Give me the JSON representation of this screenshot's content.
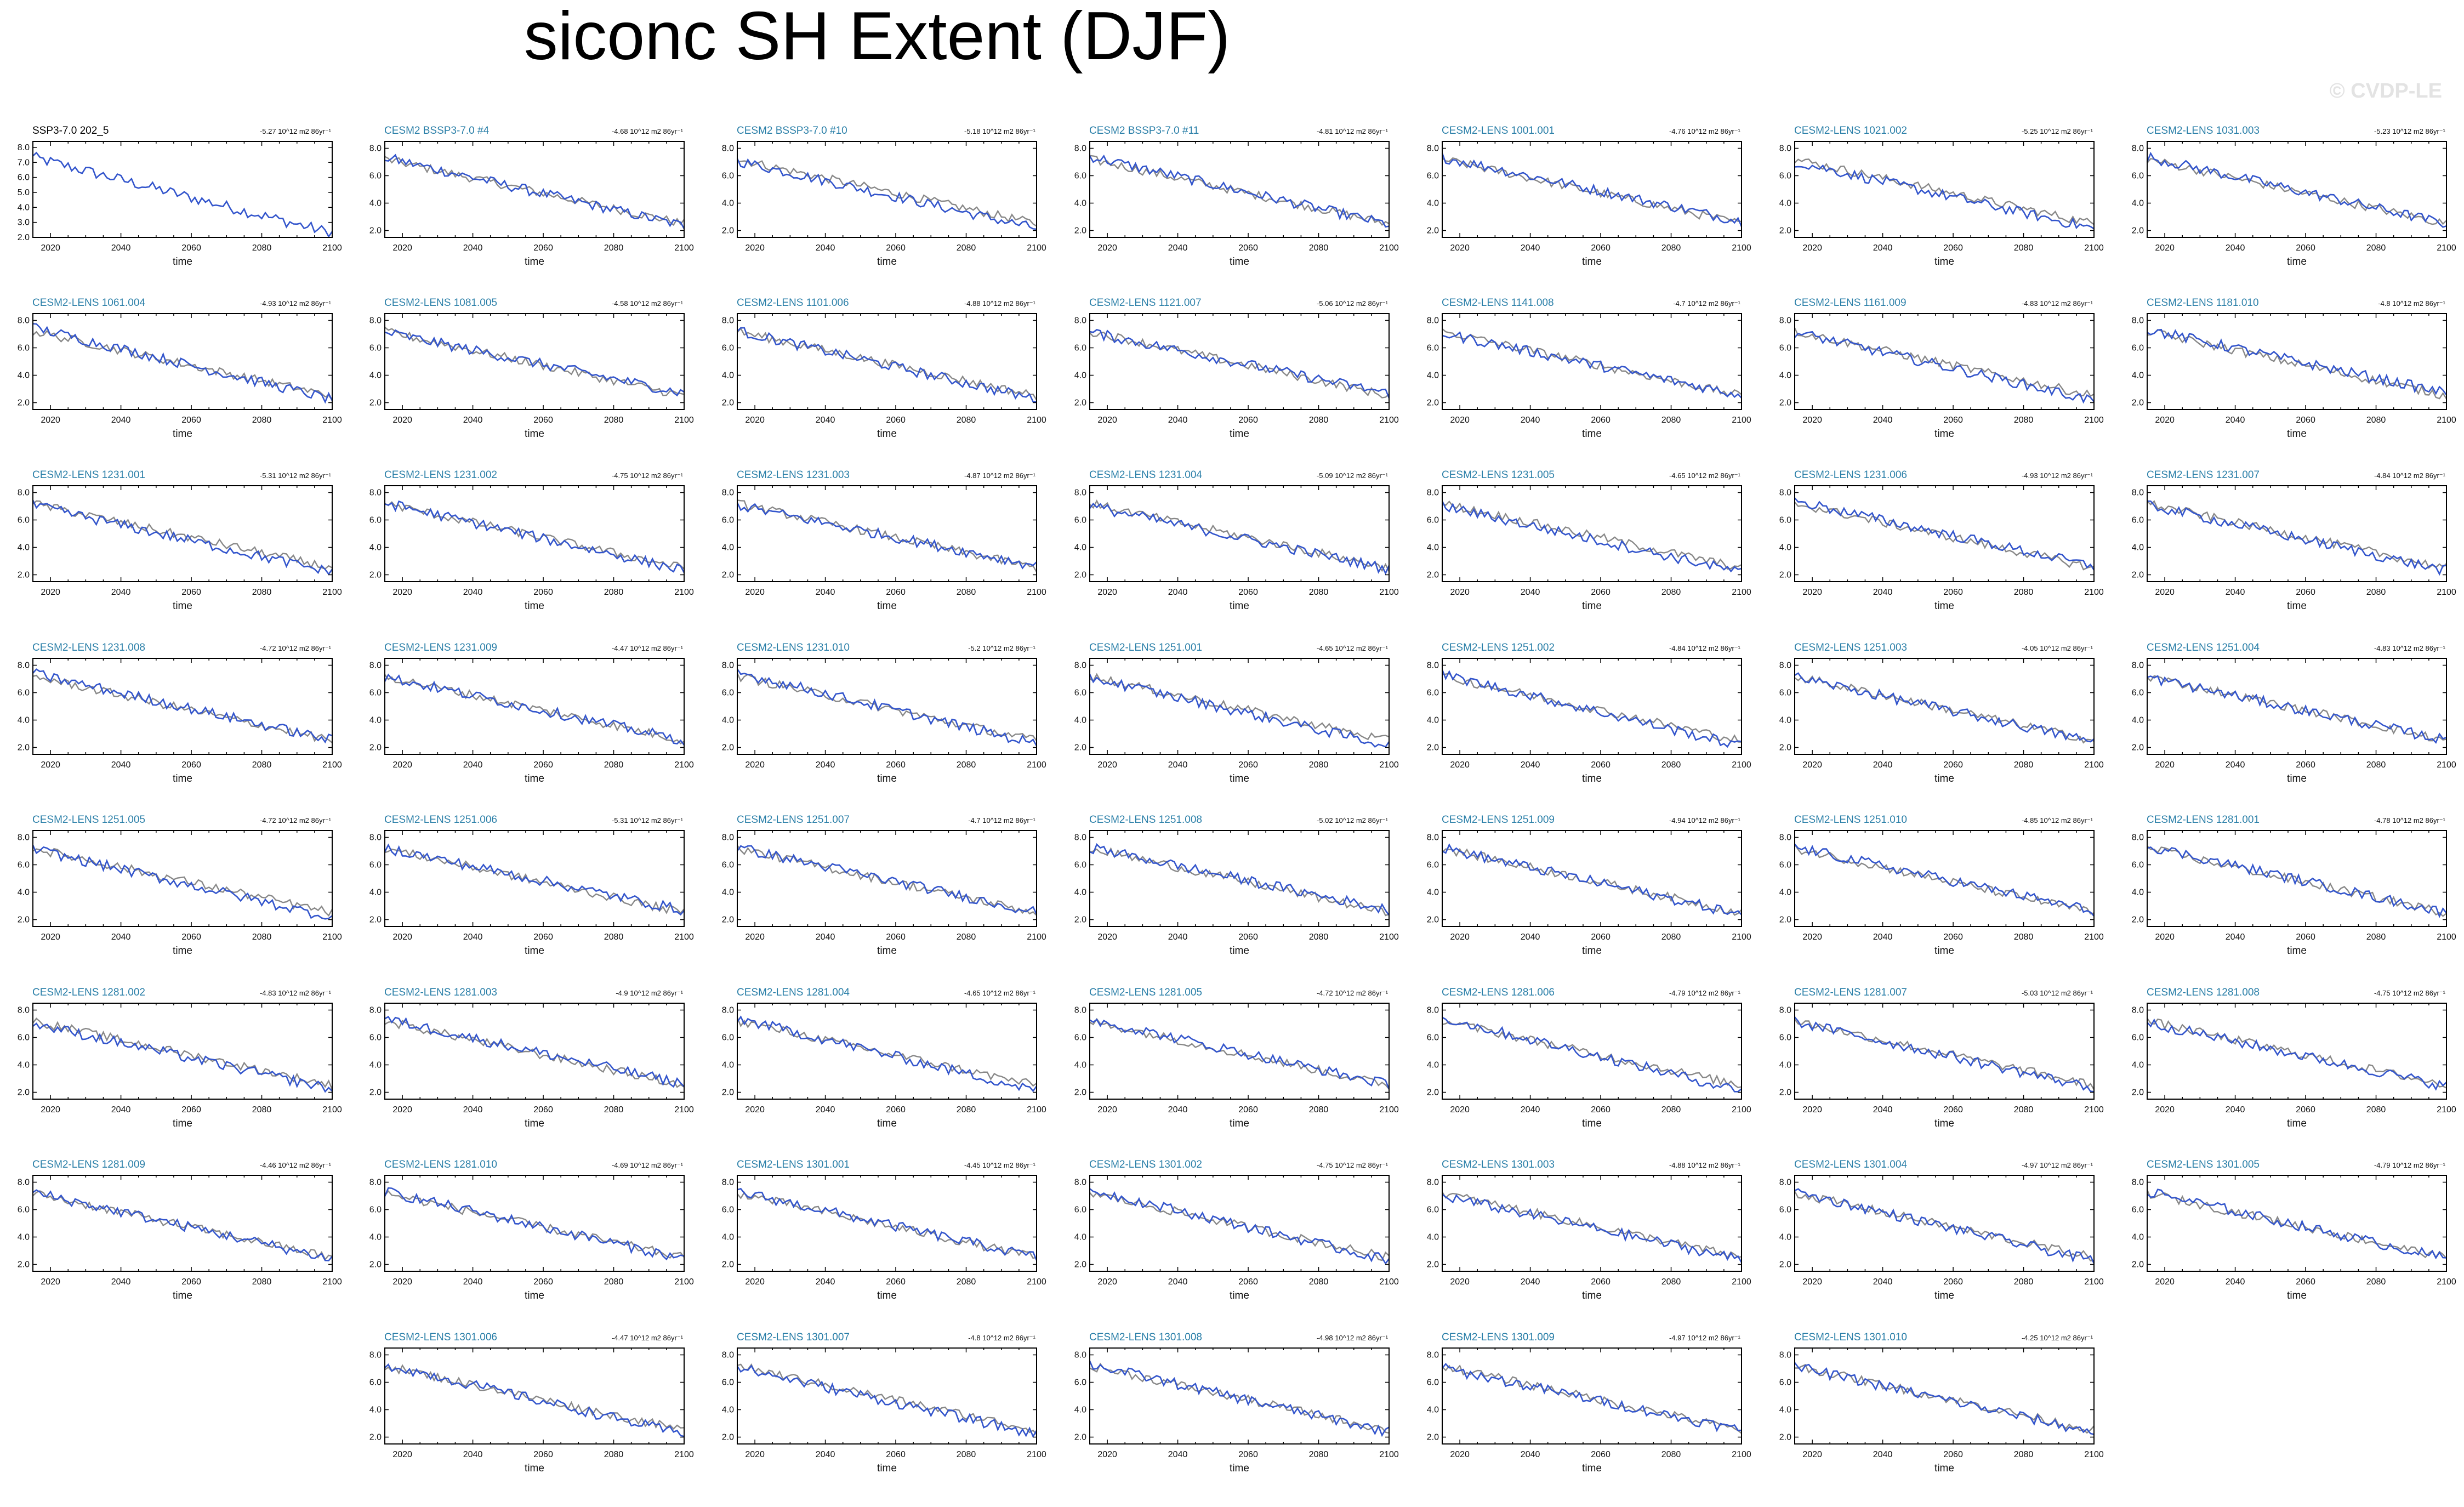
{
  "figure_title": "siconc SH Extent (DJF)",
  "watermark": "© CVDP-LE",
  "colors": {
    "ensemble_line": "#3355cc",
    "reference_line": "#888888",
    "panel_title_ensemble": "#2a7fa8",
    "panel_title_first": "#000000",
    "frame": "#000000"
  },
  "chart_data": {
    "type": "line",
    "xlabel": "time",
    "xlim": [
      2015,
      2100
    ],
    "ylim": [
      2.0,
      8.0
    ],
    "x_ticks": [
      2020,
      2040,
      2060,
      2080,
      2100
    ],
    "y_ticks": [
      "2.0",
      "4.0",
      "6.0",
      "8.0"
    ],
    "first_panel_y_ticks": [
      "2.0",
      "3.0",
      "4.0",
      "5.0",
      "6.0",
      "7.0",
      "8.0"
    ],
    "panels": [
      {
        "title": "SSP3-7.0 202_5",
        "trend": "-5.27 10^12 m2 86yr⁻¹"
      },
      {
        "title": "CESM2 BSSP3-7.0 #4",
        "trend": "-4.68 10^12 m2 86yr⁻¹"
      },
      {
        "title": "CESM2 BSSP3-7.0 #10",
        "trend": "-5.18 10^12 m2 86yr⁻¹"
      },
      {
        "title": "CESM2 BSSP3-7.0 #11",
        "trend": "-4.81 10^12 m2 86yr⁻¹"
      },
      {
        "title": "CESM2-LENS 1001.001",
        "trend": "-4.76 10^12 m2 86yr⁻¹"
      },
      {
        "title": "CESM2-LENS 1021.002",
        "trend": "-5.25 10^12 m2 86yr⁻¹"
      },
      {
        "title": "CESM2-LENS 1031.003",
        "trend": "-5.23 10^12 m2 86yr⁻¹"
      },
      {
        "title": "CESM2-LENS 1061.004",
        "trend": "-4.93 10^12 m2 86yr⁻¹"
      },
      {
        "title": "CESM2-LENS 1081.005",
        "trend": "-4.58 10^12 m2 86yr⁻¹"
      },
      {
        "title": "CESM2-LENS 1101.006",
        "trend": "-4.88 10^12 m2 86yr⁻¹"
      },
      {
        "title": "CESM2-LENS 1121.007",
        "trend": "-5.06 10^12 m2 86yr⁻¹"
      },
      {
        "title": "CESM2-LENS 1141.008",
        "trend": "-4.7 10^12 m2 86yr⁻¹"
      },
      {
        "title": "CESM2-LENS 1161.009",
        "trend": "-4.83 10^12 m2 86yr⁻¹"
      },
      {
        "title": "CESM2-LENS 1181.010",
        "trend": "-4.8 10^12 m2 86yr⁻¹"
      },
      {
        "title": "CESM2-LENS 1231.001",
        "trend": "-5.31 10^12 m2 86yr⁻¹"
      },
      {
        "title": "CESM2-LENS 1231.002",
        "trend": "-4.75 10^12 m2 86yr⁻¹"
      },
      {
        "title": "CESM2-LENS 1231.003",
        "trend": "-4.87 10^12 m2 86yr⁻¹"
      },
      {
        "title": "CESM2-LENS 1231.004",
        "trend": "-5.09 10^12 m2 86yr⁻¹"
      },
      {
        "title": "CESM2-LENS 1231.005",
        "trend": "-4.65 10^12 m2 86yr⁻¹"
      },
      {
        "title": "CESM2-LENS 1231.006",
        "trend": "-4.93 10^12 m2 86yr⁻¹"
      },
      {
        "title": "CESM2-LENS 1231.007",
        "trend": "-4.84 10^12 m2 86yr⁻¹"
      },
      {
        "title": "CESM2-LENS 1231.008",
        "trend": "-4.72 10^12 m2 86yr⁻¹"
      },
      {
        "title": "CESM2-LENS 1231.009",
        "trend": "-4.47 10^12 m2 86yr⁻¹"
      },
      {
        "title": "CESM2-LENS 1231.010",
        "trend": "-5.2 10^12 m2 86yr⁻¹"
      },
      {
        "title": "CESM2-LENS 1251.001",
        "trend": "-4.65 10^12 m2 86yr⁻¹"
      },
      {
        "title": "CESM2-LENS 1251.002",
        "trend": "-4.84 10^12 m2 86yr⁻¹"
      },
      {
        "title": "CESM2-LENS 1251.003",
        "trend": "-4.05 10^12 m2 86yr⁻¹"
      },
      {
        "title": "CESM2-LENS 1251.004",
        "trend": "-4.83 10^12 m2 86yr⁻¹"
      },
      {
        "title": "CESM2-LENS 1251.005",
        "trend": "-4.72 10^12 m2 86yr⁻¹"
      },
      {
        "title": "CESM2-LENS 1251.006",
        "trend": "-5.31 10^12 m2 86yr⁻¹"
      },
      {
        "title": "CESM2-LENS 1251.007",
        "trend": "-4.7 10^12 m2 86yr⁻¹"
      },
      {
        "title": "CESM2-LENS 1251.008",
        "trend": "-5.02 10^12 m2 86yr⁻¹"
      },
      {
        "title": "CESM2-LENS 1251.009",
        "trend": "-4.94 10^12 m2 86yr⁻¹"
      },
      {
        "title": "CESM2-LENS 1251.010",
        "trend": "-4.85 10^12 m2 86yr⁻¹"
      },
      {
        "title": "CESM2-LENS 1281.001",
        "trend": "-4.78 10^12 m2 86yr⁻¹"
      },
      {
        "title": "CESM2-LENS 1281.002",
        "trend": "-4.83 10^12 m2 86yr⁻¹"
      },
      {
        "title": "CESM2-LENS 1281.003",
        "trend": "-4.9 10^12 m2 86yr⁻¹"
      },
      {
        "title": "CESM2-LENS 1281.004",
        "trend": "-4.65 10^12 m2 86yr⁻¹"
      },
      {
        "title": "CESM2-LENS 1281.005",
        "trend": "-4.72 10^12 m2 86yr⁻¹"
      },
      {
        "title": "CESM2-LENS 1281.006",
        "trend": "-4.79 10^12 m2 86yr⁻¹"
      },
      {
        "title": "CESM2-LENS 1281.007",
        "trend": "-5.03 10^12 m2 86yr⁻¹"
      },
      {
        "title": "CESM2-LENS 1281.008",
        "trend": "-4.75 10^12 m2 86yr⁻¹"
      },
      {
        "title": "CESM2-LENS 1281.009",
        "trend": "-4.46 10^12 m2 86yr⁻¹"
      },
      {
        "title": "CESM2-LENS 1281.010",
        "trend": "-4.69 10^12 m2 86yr⁻¹"
      },
      {
        "title": "CESM2-LENS 1301.001",
        "trend": "-4.45 10^12 m2 86yr⁻¹"
      },
      {
        "title": "CESM2-LENS 1301.002",
        "trend": "-4.75 10^12 m2 86yr⁻¹"
      },
      {
        "title": "CESM2-LENS 1301.003",
        "trend": "-4.88 10^12 m2 86yr⁻¹"
      },
      {
        "title": "CESM2-LENS 1301.004",
        "trend": "-4.97 10^12 m2 86yr⁻¹"
      },
      {
        "title": "CESM2-LENS 1301.005",
        "trend": "-4.79 10^12 m2 86yr⁻¹"
      },
      {
        "title": "CESM2-LENS 1301.006",
        "trend": "-4.47 10^12 m2 86yr⁻¹"
      },
      {
        "title": "CESM2-LENS 1301.007",
        "trend": "-4.8 10^12 m2 86yr⁻¹"
      },
      {
        "title": "CESM2-LENS 1301.008",
        "trend": "-4.98 10^12 m2 86yr⁻¹"
      },
      {
        "title": "CESM2-LENS 1301.009",
        "trend": "-4.97 10^12 m2 86yr⁻¹"
      },
      {
        "title": "CESM2-LENS 1301.010",
        "trend": "-4.25 10^12 m2 86yr⁻¹"
      }
    ]
  }
}
